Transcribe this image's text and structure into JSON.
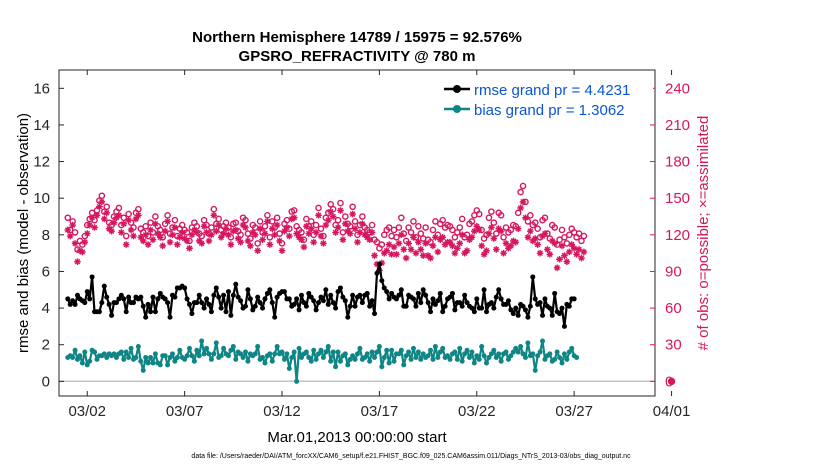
{
  "chart_data": {
    "type": "line",
    "title_line1": "Northern Hemisphere 14789 / 15975 = 92.576%",
    "title_line2": "GPSRO_REFRACTIVITY @ 780 m",
    "xlabel": "Mar.01,2013 00:00:00 start",
    "ylabel_left": "rmse and bias (model - observation)",
    "ylabel_right": "# of obs: o=possible; ×=assimilated",
    "xlim": [
      0.55,
      31.15
    ],
    "ylim_left": [
      -0.8,
      17
    ],
    "ylim_right": [
      -12,
      255
    ],
    "xticks": [
      {
        "value": 2,
        "label": "03/02"
      },
      {
        "value": 7,
        "label": "03/07"
      },
      {
        "value": 12,
        "label": "03/12"
      },
      {
        "value": 17,
        "label": "03/17"
      },
      {
        "value": 22,
        "label": "03/22"
      },
      {
        "value": 27,
        "label": "03/27"
      },
      {
        "value": 32,
        "label": "04/01"
      }
    ],
    "yticks_left": [
      "0",
      "2",
      "4",
      "6",
      "8",
      "10",
      "12",
      "14",
      "16"
    ],
    "yticks_right": [
      "0",
      "30",
      "60",
      "90",
      "120",
      "150",
      "180",
      "210",
      "240"
    ],
    "colors": {
      "rmse": "#000000",
      "bias": "#0f8585",
      "obs": "#d6175f",
      "legend_text": "#0a55d6",
      "zero_line": "#bdbdbd"
    },
    "legend_position": "top-right",
    "footer": "data file: /Users/raeder/DAI/ATM_forcXX/CAM6_setup/f.e21.FHIST_BGC.f09_025.CAM6assim.011/Diags_NTrS_2013-03/obs_diag_output.nc",
    "series": [
      {
        "name": "rmse grand pr = 4.4231",
        "key": "rmse",
        "values": [
          4.5,
          4.2,
          4.4,
          4.2,
          4.7,
          4.5,
          4.4,
          4.3,
          4.9,
          4.5,
          5.7,
          3.8,
          3.8,
          3.8,
          4.3,
          5.2,
          4.6,
          4.2,
          3.6,
          4.3,
          4.3,
          4.5,
          4.7,
          4.5,
          3.8,
          4.6,
          4.3,
          4.3,
          4.6,
          4.5,
          4.6,
          4.1,
          3.5,
          4.2,
          3.8,
          4.6,
          3.8,
          4.5,
          4.8,
          4.6,
          4.5,
          4.3,
          3.5,
          4.7,
          4.6,
          5.1,
          5.1,
          5.2,
          5.1,
          4.5,
          4.2,
          3.7,
          4.3,
          4.3,
          4.7,
          4.3,
          4.0,
          4.5,
          4.2,
          3.8,
          4.7,
          5.1,
          4.6,
          4.0,
          4.7,
          3.8,
          4.9,
          3.6,
          4.7,
          5.3,
          4.6,
          4.4,
          4.0,
          4.1,
          5.0,
          4.5,
          3.9,
          4.1,
          4.6,
          4.3,
          4.0,
          4.5,
          4.8,
          5.0,
          4.3,
          3.5,
          4.6,
          4.8,
          4.9,
          4.9,
          4.5,
          4.5,
          4.1,
          4.2,
          4.5,
          3.9,
          4.7,
          4.3,
          4.1,
          4.8,
          4.6,
          4.4,
          3.9,
          4.3,
          4.6,
          4.4,
          5.0,
          4.2,
          4.7,
          4.3,
          4.0,
          4.9,
          5.1,
          4.6,
          4.4,
          3.5,
          4.1,
          4.7,
          4.1,
          4.6,
          4.7,
          4.3,
          4.7,
          4.8,
          4.1,
          4.4,
          3.7,
          5.9,
          6.4,
          5.5,
          5.1,
          4.9,
          4.5,
          4.8,
          4.6,
          4.5,
          4.7,
          5.0,
          4.1,
          4.1,
          4.7,
          4.6,
          4.5,
          4.1,
          4.8,
          4.3,
          5.0,
          4.7,
          4.3,
          3.8,
          4.5,
          4.2,
          4.4,
          4.8,
          3.8,
          4.1,
          4.5,
          4.6,
          4.8,
          3.9,
          4.3,
          4.3,
          4.1,
          4.7,
          4.3,
          4.1,
          4.0,
          3.8,
          4.5,
          4.0,
          4.0,
          5.0,
          3.8,
          4.2,
          4.3,
          4.0,
          4.6,
          5.0,
          4.5,
          4.2,
          4.2,
          4.4,
          3.9,
          3.7,
          4.0,
          3.6,
          4.2,
          4.1,
          3.9,
          3.5,
          4.1,
          5.7,
          4.5,
          4.2,
          4.3,
          3.6,
          4.5,
          4.1,
          4.0,
          3.6,
          4.8,
          3.8,
          3.7,
          4.0,
          3.0,
          4.2,
          4.1,
          4.5,
          4.5
        ],
        "marker": "dot"
      },
      {
        "name": "bias grand pr = 1.3062",
        "key": "bias",
        "values": [
          1.3,
          1.4,
          1.3,
          1.7,
          1.2,
          1.4,
          1.0,
          1.6,
          0.9,
          1.1,
          1.7,
          1.6,
          1.2,
          1.4,
          1.4,
          1.5,
          1.3,
          1.5,
          1.4,
          1.5,
          1.3,
          1.5,
          1.6,
          1.2,
          1.6,
          1.3,
          1.8,
          1.2,
          1.3,
          1.9,
          1.1,
          0.6,
          1.3,
          1.0,
          1.3,
          1.0,
          1.5,
          1.0,
          0.9,
          1.4,
          1.4,
          0.9,
          1.3,
          1.5,
          1.1,
          1.3,
          1.7,
          1.3,
          1.2,
          1.4,
          1.8,
          1.4,
          1.1,
          1.7,
          1.4,
          2.2,
          1.5,
          1.8,
          1.5,
          1.2,
          1.5,
          2.1,
          1.3,
          1.4,
          1.8,
          1.5,
          1.4,
          1.7,
          1.9,
          1.2,
          1.6,
          1.5,
          1.3,
          1.6,
          1.1,
          1.5,
          1.4,
          1.5,
          1.9,
          1.2,
          1.3,
          1.0,
          1.4,
          1.5,
          1.1,
          1.5,
          1.9,
          1.5,
          1.6,
          1.2,
          1.5,
          0.7,
          1.3,
          1.6,
          0.0,
          1.8,
          1.3,
          1.5,
          1.6,
          1.3,
          1.1,
          1.7,
          1.2,
          1.5,
          1.7,
          1.3,
          1.6,
          1.9,
          1.1,
          1.6,
          0.8,
          1.6,
          1.1,
          1.4,
          1.5,
          0.9,
          1.2,
          1.4,
          1.2,
          1.5,
          1.8,
          1.2,
          1.3,
          1.5,
          1.1,
          1.6,
          1.3,
          1.6,
          1.9,
          0.8,
          1.3,
          1.7,
          1.0,
          1.7,
          1.1,
          1.5,
          1.5,
          1.7,
          0.9,
          1.4,
          1.6,
          1.2,
          1.8,
          1.3,
          1.6,
          1.2,
          1.5,
          1.3,
          1.4,
          1.7,
          1.2,
          1.9,
          1.3,
          1.6,
          1.8,
          1.3,
          1.4,
          1.2,
          1.5,
          1.6,
          1.2,
          1.8,
          1.1,
          1.5,
          1.7,
          1.3,
          1.6,
          1.0,
          1.4,
          1.2,
          1.9,
          1.4,
          1.0,
          1.3,
          1.5,
          1.7,
          1.3,
          1.5,
          1.1,
          1.5,
          1.6,
          1.2,
          1.4,
          1.6,
          1.8,
          1.6,
          1.9,
          1.5,
          1.3,
          2.1,
          1.4,
          1.5,
          0.6,
          1.4,
          1.6,
          2.2,
          1.2,
          1.4,
          1.5,
          1.1,
          1.2,
          1.6,
          1.3,
          1.0,
          1.5,
          1.2,
          1.6,
          1.8,
          1.4,
          1.3
        ],
        "marker": "dot"
      },
      {
        "name": "possible",
        "key": "possible",
        "values": [
          134,
          124,
          131,
          122,
          108,
          115,
          112,
          119,
          128,
          133,
          138,
          132,
          140,
          148,
          152,
          139,
          143,
          130,
          128,
          135,
          139,
          142,
          128,
          134,
          119,
          137,
          130,
          126,
          138,
          141,
          125,
          122,
          127,
          119,
          130,
          122,
          135,
          127,
          124,
          118,
          129,
          136,
          121,
          126,
          132,
          119,
          125,
          128,
          124,
          122,
          115,
          126,
          130,
          127,
          121,
          119,
          132,
          128,
          121,
          126,
          141,
          129,
          133,
          124,
          127,
          130,
          126,
          118,
          129,
          130,
          123,
          120,
          134,
          132,
          121,
          117,
          128,
          126,
          113,
          131,
          122,
          127,
          136,
          118,
          131,
          126,
          134,
          121,
          113,
          129,
          132,
          125,
          139,
          140,
          127,
          124,
          122,
          116,
          133,
          127,
          131,
          120,
          128,
          142,
          125,
          119,
          134,
          138,
          145,
          141,
          128,
          132,
          146,
          122,
          135,
          129,
          127,
          143,
          131,
          120,
          128,
          135,
          126,
          124,
          122,
          128,
          116,
          114,
          109,
          112,
          120,
          124,
          126,
          119,
          124,
          118,
          126,
          134,
          121,
          115,
          126,
          122,
          131,
          118,
          127,
          121,
          117,
          126,
          116,
          114,
          124,
          131,
          120,
          129,
          132,
          126,
          128,
          127,
          124,
          118,
          122,
          126,
          133,
          118,
          120,
          129,
          131,
          136,
          140,
          137,
          124,
          117,
          120,
          134,
          139,
          130,
          121,
          138,
          136,
          118,
          126,
          122,
          124,
          128,
          127,
          138,
          155,
          160,
          147,
          131,
          136,
          128,
          130,
          125,
          118,
          132,
          134,
          121,
          117,
          128,
          126,
          112,
          116,
          124,
          118,
          113,
          120,
          125,
          122,
          118,
          121,
          115,
          119
        ],
        "marker": "circle"
      },
      {
        "name": "assimilated",
        "key": "assimilated",
        "values": [
          124,
          119,
          128,
          113,
          98,
          107,
          106,
          114,
          121,
          128,
          134,
          126,
          136,
          143,
          147,
          133,
          138,
          125,
          123,
          130,
          134,
          136,
          122,
          129,
          112,
          132,
          124,
          119,
          133,
          136,
          118,
          115,
          120,
          112,
          124,
          116,
          129,
          121,
          118,
          111,
          123,
          131,
          114,
          120,
          126,
          112,
          118,
          122,
          117,
          115,
          109,
          120,
          124,
          122,
          115,
          113,
          127,
          122,
          115,
          120,
          136,
          123,
          128,
          118,
          121,
          125,
          120,
          112,
          123,
          124,
          117,
          114,
          128,
          126,
          115,
          111,
          122,
          120,
          107,
          125,
          116,
          121,
          131,
          112,
          125,
          120,
          128,
          115,
          107,
          123,
          126,
          119,
          133,
          134,
          121,
          118,
          116,
          110,
          127,
          121,
          125,
          114,
          122,
          136,
          119,
          113,
          128,
          132,
          139,
          135,
          122,
          126,
          140,
          116,
          129,
          123,
          121,
          137,
          125,
          114,
          122,
          129,
          120,
          118,
          116,
          122,
          103,
          96,
          91,
          97,
          105,
          107,
          112,
          104,
          110,
          104,
          113,
          120,
          108,
          101,
          113,
          108,
          118,
          105,
          114,
          108,
          103,
          113,
          103,
          101,
          111,
          118,
          106,
          116,
          118,
          112,
          114,
          114,
          111,
          105,
          109,
          113,
          120,
          105,
          107,
          116,
          118,
          123,
          127,
          124,
          111,
          104,
          107,
          121,
          126,
          117,
          108,
          125,
          123,
          105,
          113,
          109,
          111,
          115,
          114,
          125,
          142,
          147,
          134,
          118,
          123,
          115,
          117,
          112,
          105,
          119,
          121,
          108,
          104,
          115,
          113,
          93,
          100,
          111,
          103,
          98,
          106,
          112,
          109,
          104,
          108,
          101,
          106
        ],
        "marker": "asterisk"
      }
    ],
    "edge_markers": [
      {
        "x": 32,
        "y_right": 0,
        "label": "o"
      }
    ]
  }
}
